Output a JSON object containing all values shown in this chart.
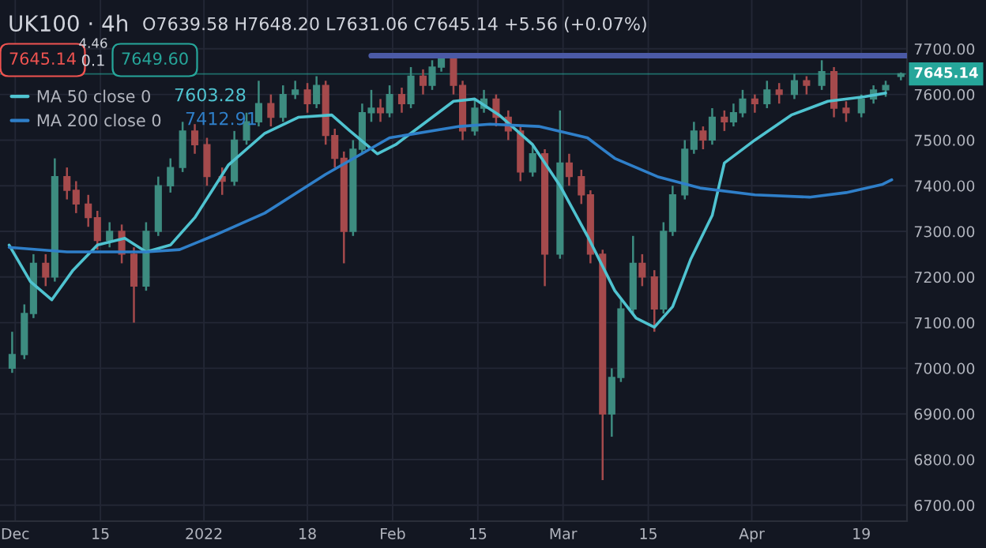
{
  "chart_data": {
    "type": "candlestick",
    "title": "UK100 · 4h",
    "annotations": [
      "O7639.58 H7648.20 L7631.06 C7645.14 +5.56 (+0.07%)",
      "7645.14",
      "4.46",
      "0.1",
      "7649.60",
      "7603.28",
      "7412.91"
    ],
    "x": [
      "2021-11-30T12:00",
      "2021-12-02T12:00",
      "2021-12-04T00:00",
      "2021-12-06T00:00",
      "2021-12-07T12:00",
      "2021-12-09T12:00",
      "2021-12-11T00:00",
      "2021-12-13T00:00",
      "2021-12-14T12:00",
      "2021-12-16T12:00",
      "2021-12-18T12:00",
      "2021-12-20T12:00",
      "2021-12-22T12:00",
      "2021-12-24T12:00",
      "2021-12-26T12:00",
      "2021-12-28T12:00",
      "2021-12-30T12:00",
      "2022-01-01T12:00",
      "2022-01-04T00:00",
      "2022-01-06T00:00",
      "2022-01-08T00:00",
      "2022-01-10T00:00",
      "2022-01-12T00:00",
      "2022-01-14T00:00",
      "2022-01-16T00:00",
      "2022-01-18T00:00",
      "2022-01-19T12:00",
      "2022-01-21T00:00",
      "2022-01-22T12:00",
      "2022-01-24T00:00",
      "2022-01-25T12:00",
      "2022-01-27T00:00",
      "2022-01-28T12:00",
      "2022-01-30T00:00",
      "2022-01-31T12:00",
      "2022-02-02T12:00",
      "2022-02-04T00:00",
      "2022-02-06T00:00",
      "2022-02-07T12:00",
      "2022-02-09T00:00",
      "2022-02-11T00:00",
      "2022-02-12T12:00",
      "2022-02-14T12:00",
      "2022-02-16T00:00",
      "2022-02-18T00:00",
      "2022-02-20T00:00",
      "2022-02-22T00:00",
      "2022-02-24T00:00",
      "2022-02-26T00:00",
      "2022-02-28T12:00",
      "2022-03-02T00:00",
      "2022-03-04T00:00",
      "2022-03-05T12:00",
      "2022-03-07T12:00",
      "2022-03-09T00:00",
      "2022-03-10T12:00",
      "2022-03-12T12:00",
      "2022-03-14T00:00",
      "2022-03-16T00:00",
      "2022-03-17T12:00",
      "2022-03-19T00:00",
      "2022-03-21T00:00",
      "2022-03-22T12:00",
      "2022-03-24T00:00",
      "2022-03-25T12:00",
      "2022-03-27T12:00",
      "2022-03-29T00:00",
      "2022-03-30T12:00",
      "2022-04-01T12:00",
      "2022-04-03T12:00",
      "2022-04-05T12:00",
      "2022-04-08T00:00",
      "2022-04-10T00:00",
      "2022-04-12T12:00",
      "2022-04-14T12:00",
      "2022-04-16T12:00",
      "2022-04-19T00:00",
      "2022-04-21T00:00",
      "2022-04-23T00:00",
      "2022-04-25T12:00"
    ],
    "ohlc": [
      [
        7000,
        7080,
        6990,
        7030
      ],
      [
        7030,
        7140,
        7020,
        7120
      ],
      [
        7120,
        7250,
        7110,
        7230
      ],
      [
        7230,
        7250,
        7180,
        7200
      ],
      [
        7200,
        7460,
        7190,
        7420
      ],
      [
        7420,
        7440,
        7370,
        7390
      ],
      [
        7390,
        7410,
        7340,
        7360
      ],
      [
        7360,
        7380,
        7310,
        7330
      ],
      [
        7330,
        7345,
        7260,
        7280
      ],
      [
        7280,
        7320,
        7265,
        7300
      ],
      [
        7300,
        7315,
        7230,
        7250
      ],
      [
        7250,
        7265,
        7100,
        7180
      ],
      [
        7180,
        7320,
        7170,
        7300
      ],
      [
        7300,
        7420,
        7290,
        7400
      ],
      [
        7400,
        7460,
        7385,
        7440
      ],
      [
        7440,
        7540,
        7430,
        7520
      ],
      [
        7520,
        7535,
        7470,
        7490
      ],
      [
        7490,
        7505,
        7400,
        7420
      ],
      [
        7420,
        7440,
        7380,
        7410
      ],
      [
        7410,
        7520,
        7400,
        7500
      ],
      [
        7500,
        7560,
        7490,
        7540
      ],
      [
        7540,
        7630,
        7530,
        7580
      ],
      [
        7580,
        7600,
        7530,
        7550
      ],
      [
        7550,
        7620,
        7540,
        7600
      ],
      [
        7600,
        7630,
        7590,
        7610
      ],
      [
        7610,
        7625,
        7560,
        7580
      ],
      [
        7580,
        7640,
        7570,
        7620
      ],
      [
        7620,
        7630,
        7490,
        7510
      ],
      [
        7510,
        7525,
        7440,
        7460
      ],
      [
        7460,
        7475,
        7230,
        7300
      ],
      [
        7300,
        7500,
        7290,
        7480
      ],
      [
        7480,
        7580,
        7470,
        7560
      ],
      [
        7560,
        7610,
        7540,
        7570
      ],
      [
        7570,
        7590,
        7540,
        7560
      ],
      [
        7560,
        7620,
        7550,
        7600
      ],
      [
        7600,
        7615,
        7560,
        7580
      ],
      [
        7580,
        7660,
        7570,
        7640
      ],
      [
        7640,
        7655,
        7600,
        7620
      ],
      [
        7620,
        7675,
        7610,
        7660
      ],
      [
        7660,
        7690,
        7650,
        7680
      ],
      [
        7680,
        7690,
        7600,
        7620
      ],
      [
        7620,
        7630,
        7500,
        7520
      ],
      [
        7520,
        7590,
        7510,
        7570
      ],
      [
        7570,
        7610,
        7560,
        7590
      ],
      [
        7590,
        7600,
        7530,
        7550
      ],
      [
        7550,
        7565,
        7500,
        7520
      ],
      [
        7520,
        7530,
        7410,
        7430
      ],
      [
        7430,
        7490,
        7420,
        7470
      ],
      [
        7470,
        7480,
        7180,
        7250
      ],
      [
        7250,
        7565,
        7240,
        7450
      ],
      [
        7450,
        7470,
        7400,
        7420
      ],
      [
        7420,
        7435,
        7360,
        7380
      ],
      [
        7380,
        7390,
        7230,
        7250
      ],
      [
        7250,
        7260,
        6755,
        6900
      ],
      [
        6900,
        7000,
        6850,
        6980
      ],
      [
        6980,
        7150,
        6970,
        7130
      ],
      [
        7130,
        7290,
        7120,
        7230
      ],
      [
        7230,
        7250,
        7180,
        7200
      ],
      [
        7200,
        7215,
        7080,
        7130
      ],
      [
        7130,
        7320,
        7120,
        7300
      ],
      [
        7300,
        7400,
        7290,
        7380
      ],
      [
        7380,
        7500,
        7370,
        7480
      ],
      [
        7480,
        7540,
        7470,
        7520
      ],
      [
        7520,
        7530,
        7480,
        7500
      ],
      [
        7500,
        7570,
        7490,
        7550
      ],
      [
        7550,
        7565,
        7520,
        7540
      ],
      [
        7540,
        7580,
        7530,
        7560
      ],
      [
        7560,
        7610,
        7550,
        7590
      ],
      [
        7590,
        7600,
        7560,
        7580
      ],
      [
        7580,
        7630,
        7570,
        7610
      ],
      [
        7610,
        7625,
        7580,
        7600
      ],
      [
        7600,
        7645,
        7590,
        7630
      ],
      [
        7630,
        7640,
        7600,
        7620
      ],
      [
        7620,
        7675,
        7610,
        7650
      ],
      [
        7650,
        7660,
        7550,
        7570
      ],
      [
        7570,
        7585,
        7540,
        7560
      ],
      [
        7560,
        7600,
        7550,
        7590
      ],
      [
        7590,
        7620,
        7580,
        7610
      ],
      [
        7610,
        7630,
        7595,
        7620
      ],
      [
        7639.58,
        7648.2,
        7631.06,
        7645.14
      ]
    ],
    "colors": [
      "#3d8c80",
      "#3d8c80",
      "#3d8c80",
      "#a54a4c",
      "#3d8c80",
      "#a54a4c",
      "#a54a4c",
      "#a54a4c",
      "#a54a4c",
      "#3d8c80",
      "#a54a4c",
      "#a54a4c",
      "#3d8c80",
      "#3d8c80",
      "#3d8c80",
      "#3d8c80",
      "#a54a4c",
      "#a54a4c",
      "#a54a4c",
      "#3d8c80",
      "#3d8c80",
      "#3d8c80",
      "#a54a4c",
      "#3d8c80",
      "#3d8c80",
      "#a54a4c",
      "#3d8c80",
      "#a54a4c",
      "#a54a4c",
      "#a54a4c",
      "#3d8c80",
      "#3d8c80",
      "#3d8c80",
      "#a54a4c",
      "#3d8c80",
      "#a54a4c",
      "#3d8c80",
      "#a54a4c",
      "#3d8c80",
      "#3d8c80",
      "#a54a4c",
      "#a54a4c",
      "#3d8c80",
      "#3d8c80",
      "#a54a4c",
      "#a54a4c",
      "#a54a4c",
      "#3d8c80",
      "#a54a4c",
      "#3d8c80",
      "#a54a4c",
      "#a54a4c",
      "#a54a4c",
      "#a54a4c",
      "#3d8c80",
      "#3d8c80",
      "#3d8c80",
      "#a54a4c",
      "#a54a4c",
      "#3d8c80",
      "#3d8c80",
      "#3d8c80",
      "#3d8c80",
      "#a54a4c",
      "#3d8c80",
      "#a54a4c",
      "#3d8c80",
      "#3d8c80",
      "#a54a4c",
      "#3d8c80",
      "#a54a4c",
      "#3d8c80",
      "#a54a4c",
      "#3d8c80",
      "#a54a4c",
      "#a54a4c",
      "#3d8c80",
      "#3d8c80",
      "#3d8c80",
      "#3d8c80"
    ],
    "series": [
      {
        "type": "line",
        "name": "MA 50 close 0",
        "color": "#4fc3d0",
        "x": [
          "2021-11-30T00:00",
          "2021-12-03T12:00",
          "2021-12-07T00:00",
          "2021-12-10T12:00",
          "2021-12-14T12:00",
          "2021-12-19T00:00",
          "2021-12-22T12:00",
          "2021-12-26T12:00",
          "2021-12-30T12:00",
          "2022-01-05T00:00",
          "2022-01-11T00:00",
          "2022-01-16T12:00",
          "2022-01-22T00:00",
          "2022-01-25T00:00",
          "2022-01-29T12:00",
          "2022-02-01T12:00",
          "2022-02-06T00:00",
          "2022-02-11T00:00",
          "2022-02-14T12:00",
          "2022-02-18T12:00",
          "2022-02-24T00:00",
          "2022-02-28T12:00",
          "2022-03-05T00:00",
          "2022-03-09T12:00",
          "2022-03-13T00:00",
          "2022-03-16T00:00",
          "2022-03-19T00:00",
          "2022-03-22T00:00",
          "2022-03-25T12:00",
          "2022-03-27T12:00",
          "2022-04-01T12:00",
          "2022-04-07T12:00",
          "2022-04-13T12:00",
          "2022-04-19T12:00",
          "2022-04-23T00:00"
        ],
        "values": [
          7270,
          7190,
          7150,
          7215,
          7270,
          7285,
          7255,
          7270,
          7330,
          7445,
          7515,
          7550,
          7555,
          7520,
          7470,
          7490,
          7535,
          7585,
          7590,
          7555,
          7490,
          7400,
          7290,
          7170,
          7110,
          7090,
          7135,
          7240,
          7335,
          7450,
          7500,
          7555,
          7585,
          7595,
          7603
        ]
      },
      {
        "type": "line",
        "name": "MA 200 close 0",
        "color": "#2f7fc9",
        "x": [
          "2021-11-30T00:00",
          "2021-12-09T12:00",
          "2021-12-22T12:00",
          "2021-12-28T00:00",
          "2022-01-02T12:00",
          "2022-01-11T00:00",
          "2022-01-21T00:00",
          "2022-01-31T12:00",
          "2022-02-12T00:00",
          "2022-02-17T00:00",
          "2022-02-25T00:00",
          "2022-03-05T00:00",
          "2022-03-09T12:00",
          "2022-03-16T12:00",
          "2022-03-23T12:00",
          "2022-04-01T12:00",
          "2022-04-10T12:00",
          "2022-04-16T12:00",
          "2022-04-22T12:00",
          "2022-04-24T00:00"
        ],
        "values": [
          7265,
          7255,
          7255,
          7260,
          7290,
          7340,
          7425,
          7505,
          7530,
          7535,
          7530,
          7505,
          7460,
          7420,
          7395,
          7380,
          7375,
          7385,
          7403,
          7413
        ]
      },
      {
        "type": "line",
        "color": "#4b5aa6",
        "x": [
          "2022-01-28T12:00",
          "2022-04-26T12:00"
        ],
        "values": [
          7685,
          7685
        ]
      }
    ],
    "ref_lines": [
      {
        "axis": "y",
        "value": 7645.14,
        "label": "7645.14",
        "color": "#26a69a"
      }
    ],
    "xlim": [
      "2021-11-28T12:00",
      "2022-04-26T12:00"
    ],
    "ylim": [
      6665,
      7807
    ],
    "xticks": [
      {
        "value": "2021-12-01",
        "label": "Dec"
      },
      {
        "value": "2021-12-15",
        "label": "15"
      },
      {
        "value": "2022-01-01",
        "label": "2022"
      },
      {
        "value": "2022-01-18",
        "label": "18"
      },
      {
        "value": "2022-02-01",
        "label": "Feb"
      },
      {
        "value": "2022-02-15",
        "label": "15"
      },
      {
        "value": "2022-03-01",
        "label": "Mar"
      },
      {
        "value": "2022-03-15",
        "label": "15"
      },
      {
        "value": "2022-04-01",
        "label": "Apr"
      },
      {
        "value": "2022-04-19",
        "label": "19"
      }
    ],
    "yticks": [
      {
        "value": 6700,
        "label": "6700.00"
      },
      {
        "value": 6800,
        "label": "6800.00"
      },
      {
        "value": 6900,
        "label": "6900.00"
      },
      {
        "value": 7000,
        "label": "7000.00"
      },
      {
        "value": 7100,
        "label": "7100.00"
      },
      {
        "value": 7200,
        "label": "7200.00"
      },
      {
        "value": 7300,
        "label": "7300.00"
      },
      {
        "value": 7400,
        "label": "7400.00"
      },
      {
        "value": 7500,
        "label": "7500.00"
      },
      {
        "value": 7600,
        "label": "7600.00"
      },
      {
        "value": 7700,
        "label": "7700.00"
      }
    ],
    "grid": true,
    "legend": "top left"
  }
}
